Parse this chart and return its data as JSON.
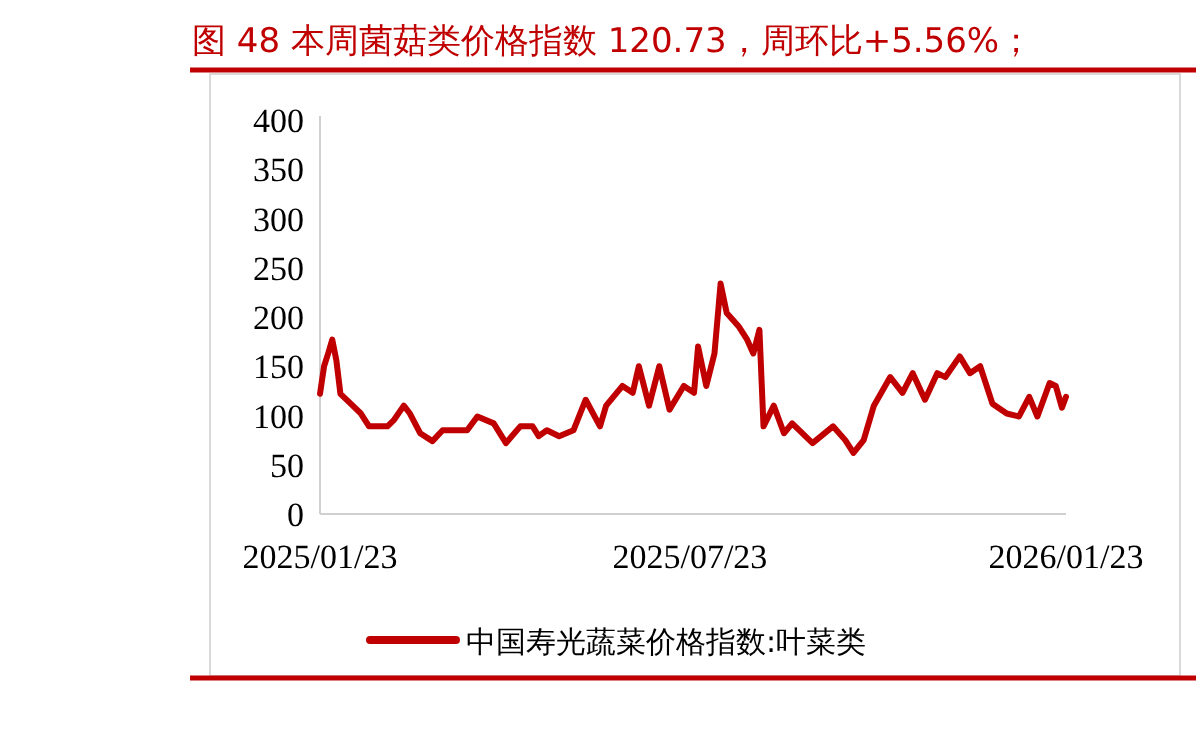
{
  "chart_data": {
    "type": "line",
    "title": "图 48 本周菌菇类价格指数 120.73，周环比+5.56%；",
    "x": [
      "2025-01-23",
      "2025-01-25",
      "2025-01-27",
      "2025-01-29",
      "2025-01-31",
      "2025-02-02",
      "2025-02-07",
      "2025-02-12",
      "2025-02-16",
      "2025-02-25",
      "2025-02-28",
      "2025-03-05",
      "2025-03-08",
      "2025-03-13",
      "2025-03-19",
      "2025-03-24",
      "2025-04-05",
      "2025-04-10",
      "2025-04-18",
      "2025-04-24",
      "2025-05-01",
      "2025-05-07",
      "2025-05-10",
      "2025-05-14",
      "2025-05-20",
      "2025-05-27",
      "2025-06-02",
      "2025-06-09",
      "2025-06-12",
      "2025-06-20",
      "2025-06-25",
      "2025-06-28",
      "2025-07-03",
      "2025-07-08",
      "2025-07-13",
      "2025-07-20",
      "2025-07-25",
      "2025-07-27",
      "2025-07-31",
      "2025-08-04",
      "2025-08-07",
      "2025-08-10",
      "2025-08-16",
      "2025-08-20",
      "2025-08-23",
      "2025-08-26",
      "2025-08-28",
      "2025-09-02",
      "2025-09-07",
      "2025-09-11",
      "2025-09-21",
      "2025-10-01",
      "2025-10-07",
      "2025-10-11",
      "2025-10-16",
      "2025-10-21",
      "2025-10-29",
      "2025-11-04",
      "2025-11-09",
      "2025-11-15",
      "2025-11-21",
      "2025-11-25",
      "2025-12-02",
      "2025-12-07",
      "2025-12-12",
      "2025-12-18",
      "2025-12-25",
      "2025-12-31",
      "2026-01-05",
      "2026-01-09",
      "2026-01-15",
      "2026-01-18",
      "2026-01-21",
      "2026-01-23"
    ],
    "series": [
      {
        "name": "中国寿光蔬菜价格指数:叶菜类",
        "color": "#c00000",
        "values": [
          122,
          150,
          163,
          177,
          156,
          122,
          112,
          102,
          89,
          89,
          95,
          110,
          102,
          82,
          74,
          85,
          85,
          99,
          92,
          72,
          89,
          89,
          79,
          85,
          79,
          85,
          116,
          89,
          110,
          130,
          123,
          150,
          110,
          150,
          106,
          130,
          123,
          170,
          130,
          163,
          234,
          204,
          190,
          177,
          163,
          187,
          89,
          110,
          82,
          92,
          72,
          89,
          75,
          62,
          75,
          110,
          139,
          123,
          143,
          116,
          143,
          139,
          160,
          143,
          150,
          112,
          102,
          99,
          119,
          99,
          133,
          130,
          108,
          119
        ]
      }
    ],
    "xlim": [
      "2025-01-23",
      "2026-01-23"
    ],
    "xticks": [
      {
        "value": "2025-01-23",
        "label": "2025/01/23"
      },
      {
        "value": "2025-07-23",
        "label": "2025/07/23"
      },
      {
        "value": "2026-01-23",
        "label": "2026/01/23"
      }
    ],
    "ylim": [
      0,
      400
    ],
    "yticks": [
      0,
      50,
      100,
      150,
      200,
      250,
      300,
      350,
      400
    ],
    "grid": false,
    "legend": "bottom",
    "marker": "none",
    "line_style": "solid"
  }
}
